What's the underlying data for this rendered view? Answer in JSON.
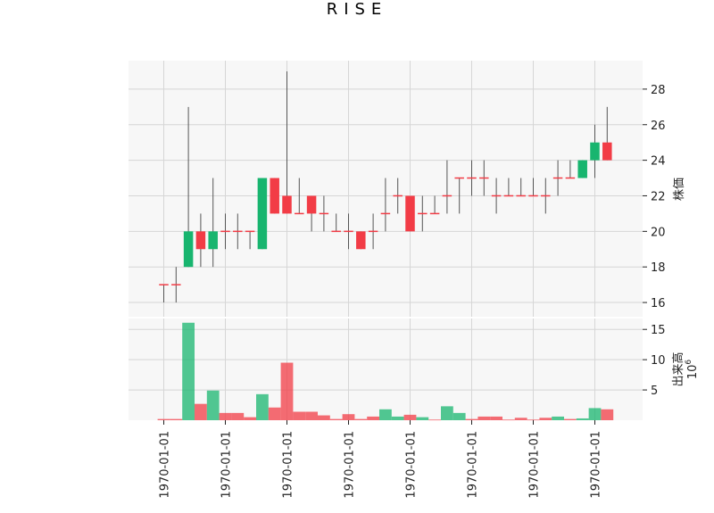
{
  "chart_data": [
    {
      "type": "candlestick",
      "title": "RISE",
      "ylabel": "株価",
      "ylim": [
        15.2,
        29.6
      ],
      "yticks": [
        16,
        18,
        20,
        22,
        24,
        26,
        28
      ],
      "grid": true,
      "colors": {
        "up": "#18b56f",
        "down": "#f23c46",
        "wick": "#555555",
        "panel_bg": "#f7f7f7",
        "grid": "#d6d6d6"
      },
      "candles": [
        {
          "open": 17,
          "high": 17,
          "low": 16,
          "close": 17
        },
        {
          "open": 17,
          "high": 18,
          "low": 16,
          "close": 17
        },
        {
          "open": 18,
          "high": 27,
          "low": 18,
          "close": 20
        },
        {
          "open": 20,
          "high": 21,
          "low": 18,
          "close": 19
        },
        {
          "open": 19,
          "high": 23,
          "low": 18,
          "close": 20
        },
        {
          "open": 20,
          "high": 21,
          "low": 19,
          "close": 20
        },
        {
          "open": 20,
          "high": 21,
          "low": 19,
          "close": 20
        },
        {
          "open": 20,
          "high": 20,
          "low": 19,
          "close": 20
        },
        {
          "open": 19,
          "high": 23,
          "low": 19,
          "close": 23
        },
        {
          "open": 23,
          "high": 23,
          "low": 21,
          "close": 21
        },
        {
          "open": 22,
          "high": 29,
          "low": 21,
          "close": 21
        },
        {
          "open": 21,
          "high": 23,
          "low": 21,
          "close": 21
        },
        {
          "open": 22,
          "high": 22,
          "low": 20,
          "close": 21
        },
        {
          "open": 21,
          "high": 22,
          "low": 20,
          "close": 21
        },
        {
          "open": 20,
          "high": 21,
          "low": 20,
          "close": 20
        },
        {
          "open": 20,
          "high": 21,
          "low": 19,
          "close": 20
        },
        {
          "open": 20,
          "high": 20,
          "low": 19,
          "close": 19
        },
        {
          "open": 20,
          "high": 21,
          "low": 19,
          "close": 20
        },
        {
          "open": 21,
          "high": 23,
          "low": 20,
          "close": 21
        },
        {
          "open": 22,
          "high": 23,
          "low": 21,
          "close": 22
        },
        {
          "open": 22,
          "high": 22,
          "low": 20,
          "close": 20
        },
        {
          "open": 21,
          "high": 22,
          "low": 20,
          "close": 21
        },
        {
          "open": 21,
          "high": 22,
          "low": 21,
          "close": 21
        },
        {
          "open": 22,
          "high": 24,
          "low": 21,
          "close": 22
        },
        {
          "open": 23,
          "high": 23,
          "low": 21,
          "close": 23
        },
        {
          "open": 23,
          "high": 24,
          "low": 22,
          "close": 23
        },
        {
          "open": 23,
          "high": 24,
          "low": 22,
          "close": 23
        },
        {
          "open": 22,
          "high": 23,
          "low": 21,
          "close": 22
        },
        {
          "open": 22,
          "high": 23,
          "low": 22,
          "close": 22
        },
        {
          "open": 22,
          "high": 23,
          "low": 22,
          "close": 22
        },
        {
          "open": 22,
          "high": 23,
          "low": 22,
          "close": 22
        },
        {
          "open": 22,
          "high": 23,
          "low": 21,
          "close": 22
        },
        {
          "open": 23,
          "high": 24,
          "low": 22,
          "close": 23
        },
        {
          "open": 23,
          "high": 24,
          "low": 23,
          "close": 23
        },
        {
          "open": 23,
          "high": 24,
          "low": 23,
          "close": 24
        },
        {
          "open": 24,
          "high": 26,
          "low": 23,
          "close": 25
        },
        {
          "open": 25,
          "high": 27,
          "low": 24,
          "close": 24
        }
      ]
    },
    {
      "type": "bar",
      "ylabel": "出来高",
      "y_multiplier": "10",
      "y_multiplier_exp": "6",
      "ylim": [
        0,
        16.8
      ],
      "yticks": [
        5,
        10,
        15
      ],
      "grid": true,
      "volumes": [
        0.2,
        0.2,
        16.1,
        2.7,
        4.9,
        1.2,
        1.2,
        0.5,
        4.3,
        2.1,
        9.5,
        1.4,
        1.4,
        0.8,
        0.2,
        1.0,
        0.2,
        0.6,
        1.8,
        0.6,
        0.9,
        0.5,
        0.1,
        2.3,
        1.2,
        0.2,
        0.6,
        0.6,
        0.1,
        0.4,
        0.1,
        0.4,
        0.6,
        0.2,
        0.3,
        2.0,
        1.8
      ],
      "directions": [
        "down",
        "down",
        "up",
        "down",
        "up",
        "down",
        "down",
        "down",
        "up",
        "down",
        "down",
        "down",
        "down",
        "down",
        "down",
        "down",
        "down",
        "down",
        "up",
        "up",
        "down",
        "up",
        "down",
        "up",
        "up",
        "down",
        "down",
        "down",
        "down",
        "down",
        "down",
        "down",
        "up",
        "down",
        "up",
        "up",
        "down"
      ]
    }
  ],
  "x_tick_labels": [
    "1970-01-01",
    "1970-01-01",
    "1970-01-01",
    "1970-01-01",
    "1970-01-01",
    "1970-01-01",
    "1970-01-01",
    "1970-01-01"
  ],
  "x_tick_positions": [
    0,
    5,
    10,
    15,
    20,
    25,
    30,
    35
  ]
}
